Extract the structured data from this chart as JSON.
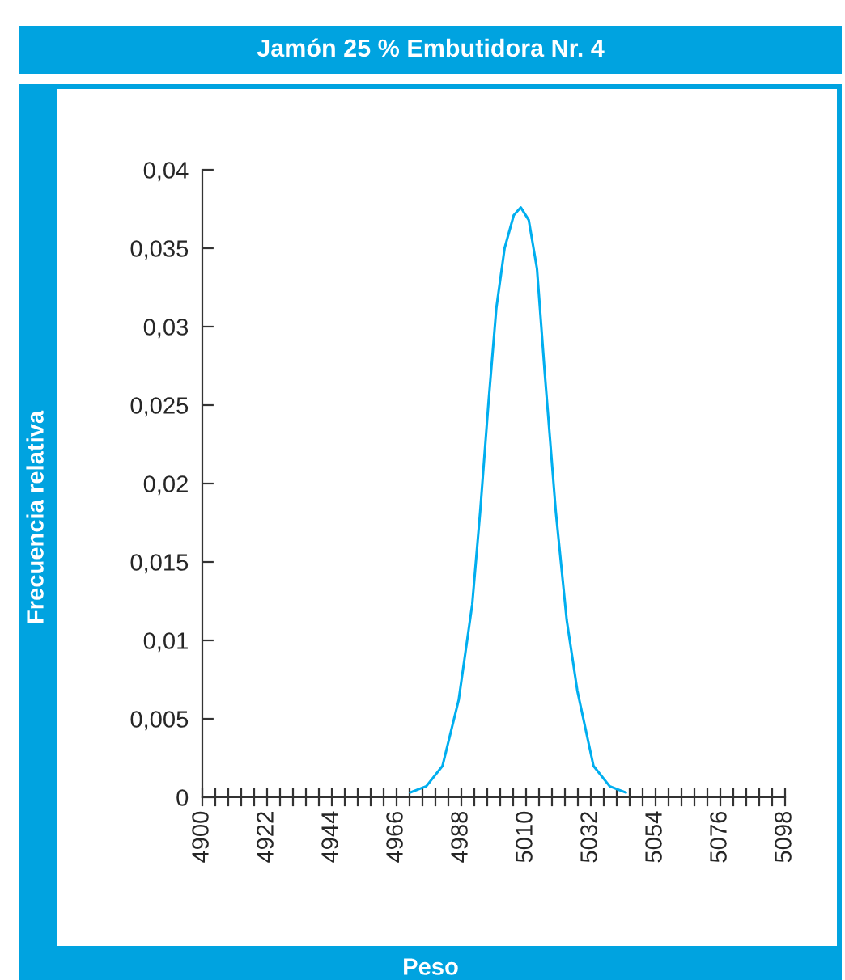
{
  "chart_data": {
    "type": "line",
    "title": "Jamón 25 % Embutidora Nr. 4",
    "xlabel": "Peso",
    "ylabel": "Frecuencia relativa",
    "series": [
      {
        "color": "#00aeef",
        "x": [
          4970.6,
          4976.1,
          4981.6,
          4987.1,
          4991.7,
          4994.4,
          4997.2,
          4999.9,
          5002.7,
          5005.8,
          5008.2,
          5010.9,
          5013.7,
          5016.4,
          5020.1,
          5023.8,
          5027.4,
          5032.9,
          5038.4,
          5043.9
        ],
        "values": [
          0.0003,
          0.0007,
          0.002,
          0.0062,
          0.0123,
          0.0182,
          0.0251,
          0.0312,
          0.035,
          0.0371,
          0.0376,
          0.0368,
          0.0337,
          0.0269,
          0.0182,
          0.0113,
          0.0068,
          0.002,
          0.0007,
          0.0003
        ]
      }
    ],
    "xlim": [
      4900,
      5098
    ],
    "xticks": [
      4900,
      {
        "value": 4904.4,
        "label": null
      },
      {
        "value": 4908.8,
        "label": null
      },
      {
        "value": 4913.2,
        "label": null
      },
      {
        "value": 4917.6,
        "label": null
      },
      4922,
      {
        "value": 4926.4,
        "label": null
      },
      {
        "value": 4930.8,
        "label": null
      },
      {
        "value": 4935.2,
        "label": null
      },
      {
        "value": 4939.6,
        "label": null
      },
      4944,
      {
        "value": 4948.4,
        "label": null
      },
      {
        "value": 4952.8,
        "label": null
      },
      {
        "value": 4957.2,
        "label": null
      },
      {
        "value": 4961.6,
        "label": null
      },
      4966,
      {
        "value": 4970.4,
        "label": null
      },
      {
        "value": 4974.8,
        "label": null
      },
      {
        "value": 4979.2,
        "label": null
      },
      {
        "value": 4983.6,
        "label": null
      },
      4988,
      {
        "value": 4992.4,
        "label": null
      },
      {
        "value": 4996.8,
        "label": null
      },
      {
        "value": 5001.2,
        "label": null
      },
      {
        "value": 5005.6,
        "label": null
      },
      5010,
      {
        "value": 5014.4,
        "label": null
      },
      {
        "value": 5018.8,
        "label": null
      },
      {
        "value": 5023.2,
        "label": null
      },
      {
        "value": 5027.6,
        "label": null
      },
      5032,
      {
        "value": 5036.4,
        "label": null
      },
      {
        "value": 5040.8,
        "label": null
      },
      {
        "value": 5045.2,
        "label": null
      },
      {
        "value": 5049.6,
        "label": null
      },
      5054,
      {
        "value": 5058.4,
        "label": null
      },
      {
        "value": 5062.8,
        "label": null
      },
      {
        "value": 5067.2,
        "label": null
      },
      {
        "value": 5071.6,
        "label": null
      },
      5076,
      {
        "value": 5080.4,
        "label": null
      },
      {
        "value": 5084.8,
        "label": null
      },
      {
        "value": 5089.2,
        "label": null
      },
      {
        "value": 5093.6,
        "label": null
      },
      5098
    ],
    "ylim": [
      0,
      0.04
    ],
    "yticks": [
      0,
      {
        "value": 0.005,
        "label": "0,005"
      },
      {
        "value": 0.01,
        "label": "0,01"
      },
      {
        "value": 0.015,
        "label": "0,015"
      },
      {
        "value": 0.02,
        "label": "0,02"
      },
      {
        "value": 0.025,
        "label": "0,025"
      },
      {
        "value": 0.03,
        "label": "0,03"
      },
      {
        "value": 0.035,
        "label": "0,035"
      },
      {
        "value": 0.04,
        "label": "0,04"
      }
    ],
    "grid": false,
    "marker": "none",
    "line_style": "solid"
  }
}
